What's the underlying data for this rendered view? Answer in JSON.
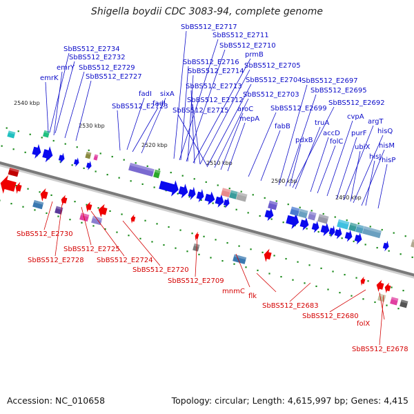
{
  "title": "Shigella boydii CDC 3083-94, complete genome",
  "footer": {
    "accession": "Accession: NC_010658",
    "topology": "Topology: circular; Length: 4,615,997 bp; Genes: 4,415"
  },
  "colors": {
    "forward_label": "#0a0ac8",
    "reverse_label": "#d40000",
    "forward_gene": "#0a0aee",
    "reverse_gene": "#ee0000",
    "backbone": "#7a7a7a",
    "tick": "#1a8a1a"
  },
  "scale_labels": [
    {
      "id": "s2540",
      "text": "2540 kbp"
    },
    {
      "id": "s2530",
      "text": "2530 kbp"
    },
    {
      "id": "s2520",
      "text": "2520 kbp"
    },
    {
      "id": "s2510",
      "text": "2510 kbp"
    },
    {
      "id": "s2500",
      "text": "2500 kbp"
    },
    {
      "id": "s2490",
      "text": "2490 kbp"
    }
  ],
  "forward_genes": [
    {
      "id": "f0",
      "text": "SbBS512_E2734"
    },
    {
      "id": "f1",
      "text": "SbBS512_E2732"
    },
    {
      "id": "f2",
      "text": "emrY"
    },
    {
      "id": "f3",
      "text": "SbBS512_E2729"
    },
    {
      "id": "f4",
      "text": "emrK"
    },
    {
      "id": "f5",
      "text": "SbBS512_E2727"
    },
    {
      "id": "f6",
      "text": "fadJ"
    },
    {
      "id": "f7",
      "text": "fadI"
    },
    {
      "id": "f8",
      "text": "sixA"
    },
    {
      "id": "f9",
      "text": "SbBS512_E2723"
    },
    {
      "id": "f10",
      "text": "SbBS512_E2717"
    },
    {
      "id": "f11",
      "text": "SbBS512_E2711"
    },
    {
      "id": "f12",
      "text": "SbBS512_E2710"
    },
    {
      "id": "f13",
      "text": "prmB"
    },
    {
      "id": "f14",
      "text": "SbBS512_E2716"
    },
    {
      "id": "f15",
      "text": "SbBS512_E2705"
    },
    {
      "id": "f16",
      "text": "SbBS512_E2714"
    },
    {
      "id": "f17",
      "text": "SbBS512_E2713"
    },
    {
      "id": "f18",
      "text": "SbBS512_E2704"
    },
    {
      "id": "f19",
      "text": "SbBS512_E2712"
    },
    {
      "id": "f20",
      "text": "SbBS512_E2703"
    },
    {
      "id": "f21",
      "text": "SbBS512_E2715"
    },
    {
      "id": "f22",
      "text": "aroC"
    },
    {
      "id": "f23",
      "text": "mepA"
    },
    {
      "id": "f24",
      "text": "SbBS512_E2699"
    },
    {
      "id": "f25",
      "text": "fabB"
    },
    {
      "id": "f26",
      "text": "SbBS512_E2697"
    },
    {
      "id": "f27",
      "text": "SbBS512_E2695"
    },
    {
      "id": "f28",
      "text": "SbBS512_E2692"
    },
    {
      "id": "f29",
      "text": "truA"
    },
    {
      "id": "f30",
      "text": "pdxB"
    },
    {
      "id": "f31",
      "text": "accD"
    },
    {
      "id": "f32",
      "text": "folC"
    },
    {
      "id": "f33",
      "text": "cvpA"
    },
    {
      "id": "f34",
      "text": "purF"
    },
    {
      "id": "f35",
      "text": "argT"
    },
    {
      "id": "f36",
      "text": "hisQ"
    },
    {
      "id": "f37",
      "text": "ubiX"
    },
    {
      "id": "f38",
      "text": "hisM"
    },
    {
      "id": "f39",
      "text": "hisJ"
    },
    {
      "id": "f40",
      "text": "hisP"
    }
  ],
  "reverse_genes": [
    {
      "id": "r0",
      "text": "SbBS512_E2730"
    },
    {
      "id": "r1",
      "text": "SbBS512_E2725"
    },
    {
      "id": "r2",
      "text": "SbBS512_E2728"
    },
    {
      "id": "r3",
      "text": "SbBS512_E2724"
    },
    {
      "id": "r4",
      "text": "SbBS512_E2720"
    },
    {
      "id": "r5",
      "text": "SbBS512_E2709"
    },
    {
      "id": "r6",
      "text": "mnmC"
    },
    {
      "id": "r7",
      "text": "flk"
    },
    {
      "id": "r8",
      "text": "SbBS512_E2683"
    },
    {
      "id": "r9",
      "text": "SbBS512_E2680"
    },
    {
      "id": "r10",
      "text": "folX"
    },
    {
      "id": "r11",
      "text": "SbBS512_E2678"
    }
  ]
}
